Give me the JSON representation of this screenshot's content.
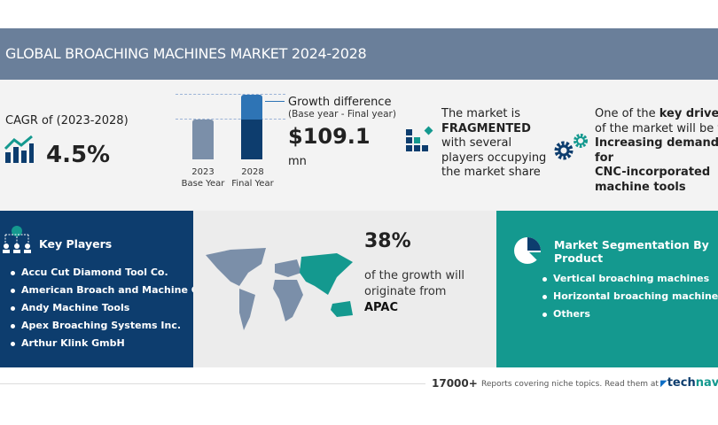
{
  "header": {
    "title": "GLOBAL BROACHING MACHINES MARKET 2024-2028"
  },
  "cagr": {
    "label": "CAGR of (2023-2028)",
    "value": "4.5%"
  },
  "growth": {
    "bar_base_year": "2023",
    "bar_base_label": "Base Year",
    "bar_final_year": "2028",
    "bar_final_label": "Final Year",
    "title": "Growth difference",
    "subtitle": "(Base year - Final year)",
    "value": "$109.1",
    "unit": "mn"
  },
  "fragmented": {
    "line1": "The market is",
    "bold": "FRAGMENTED",
    "line3": "with several",
    "line4": "players occupying",
    "line5": "the market share"
  },
  "drivers": {
    "pre": "One of the ",
    "bold1": "key drivers",
    "line2": "of the market will be the",
    "bold2": "Increasing demand",
    "bold3": "for",
    "bold4": "CNC-incorporated",
    "bold5": "machine tools"
  },
  "key_players": {
    "title": "Key Players",
    "items": [
      "Accu Cut Diamond Tool Co.",
      "American Broach and Machine Co.",
      "Andy Machine Tools",
      "Apex Broaching Systems Inc.",
      "Arthur Klink GmbH"
    ]
  },
  "region": {
    "percent": "38%",
    "line1": "of the growth will",
    "line2": "originate from",
    "region": "APAC"
  },
  "segmentation": {
    "title": "Market Segmentation By Product",
    "items": [
      "Vertical broaching machines",
      "Horizontal broaching machines",
      "Others"
    ]
  },
  "footer": {
    "count": "17000+",
    "text": "Reports covering niche topics. Read them at",
    "brand1": "tech",
    "brand2": "navio"
  },
  "colors": {
    "header": "#6a7f9a",
    "navy": "#0d3d6e",
    "teal": "#14998f"
  }
}
